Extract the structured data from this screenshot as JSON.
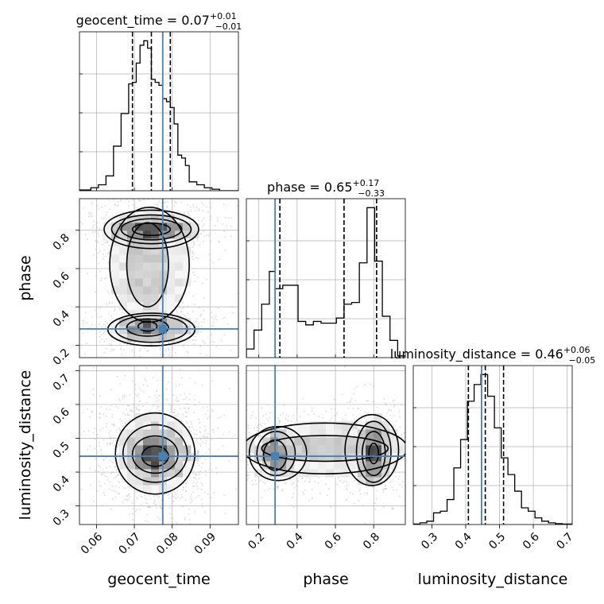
{
  "chart_data": {
    "type": "corner",
    "parameters": [
      "geocent_time",
      "phase",
      "luminosity_distance"
    ],
    "truths": {
      "geocent_time": 0.0775,
      "phase": 0.285,
      "luminosity_distance": 0.447
    },
    "ranges": {
      "geocent_time": [
        0.0555,
        0.0975
      ],
      "phase": [
        0.135,
        0.965
      ],
      "luminosity_distance": [
        0.245,
        0.715
      ]
    },
    "ticks": {
      "geocent_time": [
        0.06,
        0.07,
        0.08,
        0.09
      ],
      "phase": [
        0.2,
        0.4,
        0.6,
        0.8
      ],
      "luminosity_distance": [
        0.3,
        0.4,
        0.5,
        0.6,
        0.7
      ]
    },
    "tick_labels": {
      "geocent_time": [
        "0.06",
        "0.07",
        "0.08",
        "0.09"
      ],
      "phase": [
        "0.2",
        "0.4",
        "0.6",
        "0.8"
      ],
      "luminosity_distance": [
        "0.3",
        "0.4",
        "0.5",
        "0.6",
        "0.7"
      ]
    },
    "titles": {
      "geocent_time": {
        "name": "geocent_time",
        "value": "0.07",
        "plus": "+0.01",
        "minus": "−0.01"
      },
      "phase": {
        "name": "phase",
        "value": "0.65",
        "plus": "+0.17",
        "minus": "−0.33"
      },
      "luminosity_distance": {
        "name": "luminosity_distance",
        "value": "0.46",
        "plus": "+0.06",
        "minus": "−0.05"
      }
    },
    "quantiles": {
      "geocent_time": [
        0.0695,
        0.0745,
        0.0795
      ],
      "phase": [
        0.31,
        0.645,
        0.815
      ],
      "luminosity_distance": [
        0.408,
        0.458,
        0.512
      ]
    },
    "histograms": {
      "geocent_time": {
        "edges": [
          0.0555,
          0.0585,
          0.0605,
          0.0625,
          0.0645,
          0.0665,
          0.0685,
          0.0695,
          0.0705,
          0.0715,
          0.0725,
          0.0735,
          0.0745,
          0.0755,
          0.0765,
          0.0775,
          0.0785,
          0.0795,
          0.0805,
          0.0815,
          0.0825,
          0.0835,
          0.0845,
          0.0865,
          0.0885,
          0.0905,
          0.0925,
          0.0975
        ],
        "counts": [
          0.5,
          2,
          4,
          10,
          30,
          52,
          72,
          73,
          86,
          98,
          101,
          96,
          75,
          73,
          71,
          62,
          60,
          56,
          45,
          24,
          22,
          17,
          6,
          4,
          2,
          1,
          0
        ]
      },
      "phase": {
        "edges": [
          0.135,
          0.175,
          0.215,
          0.255,
          0.285,
          0.325,
          0.365,
          0.405,
          0.445,
          0.485,
          0.525,
          0.565,
          0.605,
          0.645,
          0.685,
          0.725,
          0.765,
          0.805,
          0.845,
          0.885,
          0.925,
          0.965
        ],
        "counts": [
          5,
          16,
          31,
          50,
          40,
          42,
          42,
          21,
          19,
          21,
          20,
          20,
          23,
          31,
          32,
          55,
          87,
          56,
          24,
          10,
          1
        ]
      },
      "luminosity_distance": {
        "edges": [
          0.245,
          0.265,
          0.285,
          0.305,
          0.325,
          0.345,
          0.365,
          0.385,
          0.405,
          0.425,
          0.445,
          0.465,
          0.485,
          0.505,
          0.525,
          0.545,
          0.565,
          0.585,
          0.605,
          0.625,
          0.645,
          0.665,
          0.685,
          0.715
        ],
        "counts": [
          0.3,
          1,
          2,
          7,
          8,
          15,
          34,
          51,
          74,
          84,
          90,
          77,
          58,
          40,
          30,
          20,
          10,
          8,
          4,
          2,
          1,
          0.5,
          0.3
        ]
      }
    },
    "contours": {
      "phase|geocent_time": [
        {
          "level": 0.39,
          "components": [
            {
              "cx": 0.074,
              "cy": 0.62,
              "rx": 0.0105,
              "ry": 0.3
            },
            {
              "cx": 0.0745,
              "cy": 0.805,
              "rx": 0.0125,
              "ry": 0.1
            },
            {
              "cx": 0.0745,
              "cy": 0.282,
              "rx": 0.0115,
              "ry": 0.085
            }
          ]
        },
        {
          "level": 0.86,
          "components": [
            {
              "cx": 0.0745,
              "cy": 0.805,
              "rx": 0.0105,
              "ry": 0.075
            },
            {
              "cx": 0.0735,
              "cy": 0.62,
              "rx": 0.0055,
              "ry": 0.22
            },
            {
              "cx": 0.0745,
              "cy": 0.285,
              "rx": 0.0095,
              "ry": 0.07
            }
          ]
        },
        {
          "level": 1.35,
          "components": [
            {
              "cx": 0.0745,
              "cy": 0.805,
              "rx": 0.008,
              "ry": 0.055
            },
            {
              "cx": 0.0735,
              "cy": 0.292,
              "rx": 0.0055,
              "ry": 0.045
            }
          ]
        },
        {
          "level": 1.82,
          "components": [
            {
              "cx": 0.0745,
              "cy": 0.805,
              "rx": 0.005,
              "ry": 0.032
            },
            {
              "cx": 0.0735,
              "cy": 0.298,
              "rx": 0.0025,
              "ry": 0.025
            }
          ]
        }
      ],
      "luminosity_distance|geocent_time": [
        {
          "level": 0.39,
          "components": [
            {
              "cx": 0.0755,
              "cy": 0.455,
              "rx": 0.0105,
              "ry": 0.12
            }
          ]
        },
        {
          "level": 0.86,
          "components": [
            {
              "cx": 0.0755,
              "cy": 0.455,
              "rx": 0.0085,
              "ry": 0.085
            }
          ]
        },
        {
          "level": 1.35,
          "components": [
            {
              "cx": 0.0755,
              "cy": 0.452,
              "rx": 0.006,
              "ry": 0.055
            }
          ]
        },
        {
          "level": 1.82,
          "components": [
            {
              "cx": 0.0755,
              "cy": 0.447,
              "rx": 0.0035,
              "ry": 0.03
            }
          ]
        }
      ],
      "luminosity_distance|phase": [
        {
          "level": 0.39,
          "components": [
            {
              "cx": 0.545,
              "cy": 0.47,
              "rx": 0.43,
              "ry": 0.075
            },
            {
              "cx": 0.3,
              "cy": 0.455,
              "rx": 0.15,
              "ry": 0.08
            },
            {
              "cx": 0.79,
              "cy": 0.465,
              "rx": 0.14,
              "ry": 0.105
            }
          ]
        },
        {
          "level": 0.86,
          "components": [
            {
              "cx": 0.29,
              "cy": 0.455,
              "rx": 0.1,
              "ry": 0.065
            },
            {
              "cx": 0.8,
              "cy": 0.46,
              "rx": 0.09,
              "ry": 0.09
            },
            {
              "cx": 0.545,
              "cy": 0.47,
              "rx": 0.33,
              "ry": 0.038
            }
          ]
        },
        {
          "level": 1.35,
          "components": [
            {
              "cx": 0.285,
              "cy": 0.45,
              "rx": 0.06,
              "ry": 0.045
            },
            {
              "cx": 0.8,
              "cy": 0.455,
              "rx": 0.06,
              "ry": 0.065
            }
          ]
        },
        {
          "level": 1.82,
          "components": [
            {
              "cx": 0.8,
              "cy": 0.455,
              "rx": 0.025,
              "ry": 0.03
            }
          ]
        }
      ]
    },
    "sample_count": 2600,
    "colors": {
      "truth": "#4682b4",
      "line": "#000000",
      "grid": "#b0b0b0",
      "sample": "#bcbcbc"
    }
  }
}
